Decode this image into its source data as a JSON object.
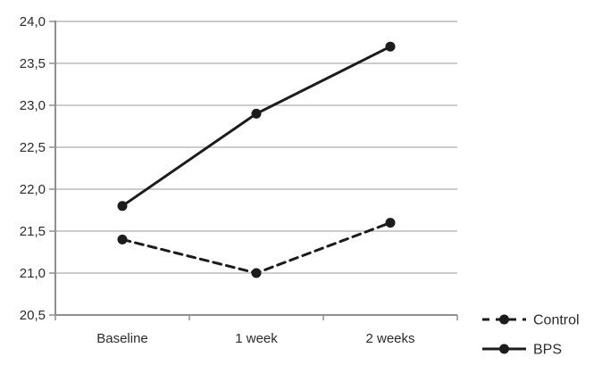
{
  "chart_data": {
    "type": "line",
    "title": "",
    "categories": [
      "Baseline",
      "1 week",
      "2 weeks"
    ],
    "series": [
      {
        "name": "Control",
        "line_style": "dashed",
        "marker": "circle",
        "values": [
          21.4,
          21.0,
          21.6
        ]
      },
      {
        "name": "BPS",
        "line_style": "solid",
        "marker": "circle",
        "values": [
          21.8,
          22.9,
          23.7
        ]
      }
    ],
    "xlabel": "",
    "ylabel": "",
    "ylim": [
      20.5,
      24.0
    ],
    "ytick_step": 0.5,
    "ytick_labels": [
      "24,0",
      "23,5",
      "23,0",
      "22,5",
      "22,0",
      "21,5",
      "21,0",
      "20,5"
    ],
    "decimal_separator": ",",
    "grid": true,
    "legend_position": "bottom-right",
    "colors": {
      "series": "#1c1c1c",
      "grid": "#adadad",
      "axis": "#8f8f8f",
      "text": "#2b2b2b",
      "background": "#ffffff"
    }
  }
}
